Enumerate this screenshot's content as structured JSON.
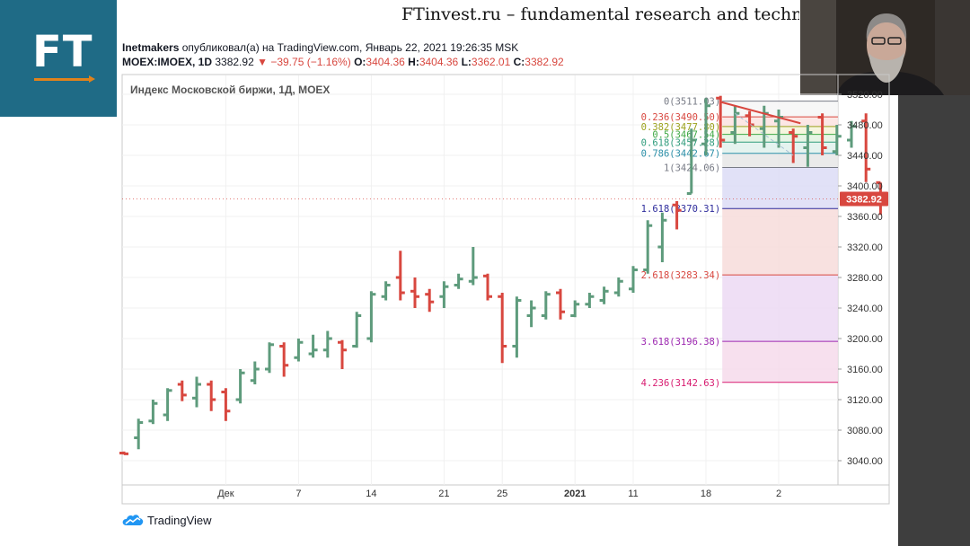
{
  "site_title": "FTinvest.ru – fundamental research and techni",
  "logo_text": "FT",
  "header": {
    "author": "Inetmakers",
    "published_text": "опубликовал(а) на TradingView.com, Январь 22, 2021 19:26:35 MSK",
    "symbol": "MOEX:IMOEX, 1D",
    "price": "3382.92",
    "change": "−39.75 (−1.16%)",
    "o_label": "O:",
    "o_value": "3404.36",
    "h_label": "H:",
    "h_value": "3404.36",
    "l_label": "L:",
    "l_value": "3362.01",
    "c_label": "C:",
    "c_value": "3382.92"
  },
  "brand": "TradingView",
  "colors": {
    "up": "#5e9b7c",
    "down": "#d8473f",
    "logo_bg": "#1f6b86",
    "logo_accent": "#e0821c"
  },
  "chart_data": {
    "type": "ohlc_bar",
    "title": "Индекс Московской биржи, 1Д, MOEX",
    "y_ticks": [
      3040,
      3080,
      3120,
      3160,
      3200,
      3240,
      3280,
      3320,
      3360,
      3400,
      3440,
      3480,
      3520
    ],
    "ylim": [
      3020,
      3530
    ],
    "x_ticks": [
      {
        "label": "Дек",
        "i": 7
      },
      {
        "label": "7",
        "i": 12
      },
      {
        "label": "14",
        "i": 17
      },
      {
        "label": "21",
        "i": 22
      },
      {
        "label": "25",
        "i": 26
      },
      {
        "label": "2021",
        "i": 31
      },
      {
        "label": "11",
        "i": 35
      },
      {
        "label": "18",
        "i": 40
      },
      {
        "label": "2",
        "i": 45
      }
    ],
    "last_price": 3382.92,
    "bars": [
      {
        "o": 3050,
        "h": 3052,
        "l": 3048,
        "c": 3049
      },
      {
        "o": 3070,
        "h": 3095,
        "l": 3055,
        "c": 3090
      },
      {
        "o": 3092,
        "h": 3120,
        "l": 3088,
        "c": 3115
      },
      {
        "o": 3100,
        "h": 3135,
        "l": 3092,
        "c": 3132
      },
      {
        "o": 3140,
        "h": 3145,
        "l": 3118,
        "c": 3126
      },
      {
        "o": 3122,
        "h": 3150,
        "l": 3110,
        "c": 3140
      },
      {
        "o": 3140,
        "h": 3145,
        "l": 3105,
        "c": 3120
      },
      {
        "o": 3130,
        "h": 3135,
        "l": 3092,
        "c": 3105
      },
      {
        "o": 3120,
        "h": 3160,
        "l": 3115,
        "c": 3155
      },
      {
        "o": 3145,
        "h": 3170,
        "l": 3140,
        "c": 3160
      },
      {
        "o": 3160,
        "h": 3195,
        "l": 3155,
        "c": 3192
      },
      {
        "o": 3190,
        "h": 3195,
        "l": 3150,
        "c": 3165
      },
      {
        "o": 3175,
        "h": 3200,
        "l": 3170,
        "c": 3195
      },
      {
        "o": 3180,
        "h": 3205,
        "l": 3175,
        "c": 3185
      },
      {
        "o": 3185,
        "h": 3210,
        "l": 3175,
        "c": 3200
      },
      {
        "o": 3195,
        "h": 3198,
        "l": 3160,
        "c": 3185
      },
      {
        "o": 3190,
        "h": 3235,
        "l": 3188,
        "c": 3230
      },
      {
        "o": 3200,
        "h": 3262,
        "l": 3195,
        "c": 3258
      },
      {
        "o": 3255,
        "h": 3275,
        "l": 3250,
        "c": 3270
      },
      {
        "o": 3280,
        "h": 3315,
        "l": 3250,
        "c": 3260
      },
      {
        "o": 3262,
        "h": 3280,
        "l": 3240,
        "c": 3255
      },
      {
        "o": 3258,
        "h": 3265,
        "l": 3235,
        "c": 3248
      },
      {
        "o": 3255,
        "h": 3275,
        "l": 3240,
        "c": 3268
      },
      {
        "o": 3270,
        "h": 3285,
        "l": 3265,
        "c": 3278
      },
      {
        "o": 3275,
        "h": 3320,
        "l": 3270,
        "c": 3280
      },
      {
        "o": 3282,
        "h": 3285,
        "l": 3250,
        "c": 3255
      },
      {
        "o": 3255,
        "h": 3260,
        "l": 3168,
        "c": 3190
      },
      {
        "o": 3190,
        "h": 3255,
        "l": 3175,
        "c": 3250
      },
      {
        "o": 3230,
        "h": 3250,
        "l": 3215,
        "c": 3240
      },
      {
        "o": 3230,
        "h": 3262,
        "l": 3225,
        "c": 3258
      },
      {
        "o": 3260,
        "h": 3265,
        "l": 3225,
        "c": 3235
      },
      {
        "o": 3230,
        "h": 3250,
        "l": 3228,
        "c": 3245
      },
      {
        "o": 3245,
        "h": 3260,
        "l": 3240,
        "c": 3255
      },
      {
        "o": 3250,
        "h": 3268,
        "l": 3245,
        "c": 3262
      },
      {
        "o": 3260,
        "h": 3280,
        "l": 3255,
        "c": 3275
      },
      {
        "o": 3265,
        "h": 3295,
        "l": 3260,
        "c": 3290
      },
      {
        "o": 3290,
        "h": 3355,
        "l": 3285,
        "c": 3348
      },
      {
        "o": 3320,
        "h": 3365,
        "l": 3300,
        "c": 3355
      },
      {
        "o": 3375,
        "h": 3380,
        "l": 3343,
        "c": 3368
      },
      {
        "o": 3390,
        "h": 3475,
        "l": 3390,
        "c": 3460
      },
      {
        "o": 3455,
        "h": 3515,
        "l": 3440,
        "c": 3505
      },
      {
        "o": 3515,
        "h": 3518,
        "l": 3450,
        "c": 3460
      },
      {
        "o": 3470,
        "h": 3505,
        "l": 3455,
        "c": 3495
      },
      {
        "o": 3492,
        "h": 3498,
        "l": 3465,
        "c": 3480
      },
      {
        "o": 3475,
        "h": 3505,
        "l": 3450,
        "c": 3495
      },
      {
        "o": 3485,
        "h": 3500,
        "l": 3450,
        "c": 3490
      },
      {
        "o": 3470,
        "h": 3475,
        "l": 3430,
        "c": 3465
      },
      {
        "o": 3450,
        "h": 3480,
        "l": 3425,
        "c": 3470
      },
      {
        "o": 3490,
        "h": 3495,
        "l": 3440,
        "c": 3450
      },
      {
        "o": 3445,
        "h": 3480,
        "l": 3440,
        "c": 3465
      },
      {
        "o": 3460,
        "h": 3485,
        "l": 3450,
        "c": 3478
      },
      {
        "o": 3485,
        "h": 3495,
        "l": 3405,
        "c": 3422
      },
      {
        "o": 3404.36,
        "h": 3404.36,
        "l": 3362.01,
        "c": 3382.92
      }
    ],
    "fib_levels": [
      {
        "label": "0(3511.03)",
        "value": 3511.03,
        "color": "#787b86",
        "fill": "#f6f6f6"
      },
      {
        "label": "0.236(3490.50)",
        "value": 3490.5,
        "color": "#d8473f",
        "fill": "#fbe3e1"
      },
      {
        "label": "0.382(3477.80)",
        "value": 3477.8,
        "color": "#9ca21d",
        "fill": "#f5f3d8"
      },
      {
        "label": "0.5(3467.54)",
        "value": 3467.54,
        "color": "#3ea845",
        "fill": "#e3f3e1"
      },
      {
        "label": "0.618(3457.28)",
        "value": 3457.28,
        "color": "#2f9c7c",
        "fill": "#e0f1ec"
      },
      {
        "label": "0.786(3442.67)",
        "value": 3442.67,
        "color": "#2b8fa8",
        "fill": "#e6e6e6"
      },
      {
        "label": "1(3424.06)",
        "value": 3424.06,
        "color": "#787b86",
        "fill": "#dcdcf6"
      },
      {
        "label": "1.618(3370.31)",
        "value": 3370.31,
        "color": "#2e2c9c",
        "fill": "#f7dcda"
      },
      {
        "label": "2.618(3283.34)",
        "value": 3283.34,
        "color": "#d8473f",
        "fill": "#ecd9f3"
      },
      {
        "label": "3.618(3196.38)",
        "value": 3196.38,
        "color": "#9c27b0",
        "fill": "#f6dbeb"
      },
      {
        "label": "4.236(3142.63)",
        "value": 3142.63,
        "color": "#d81b70",
        "fill": null
      }
    ],
    "fib_start_index": 41,
    "trendline": {
      "from": {
        "i": 41,
        "v": 3510
      },
      "to": {
        "i": 46.5,
        "v": 3482
      },
      "color": "#d8473f"
    },
    "dashed_line": {
      "from": {
        "i": 42,
        "v": 3495
      },
      "to": {
        "i": 46,
        "v": 3440
      },
      "color": "#aac4d8"
    },
    "grid": true
  }
}
